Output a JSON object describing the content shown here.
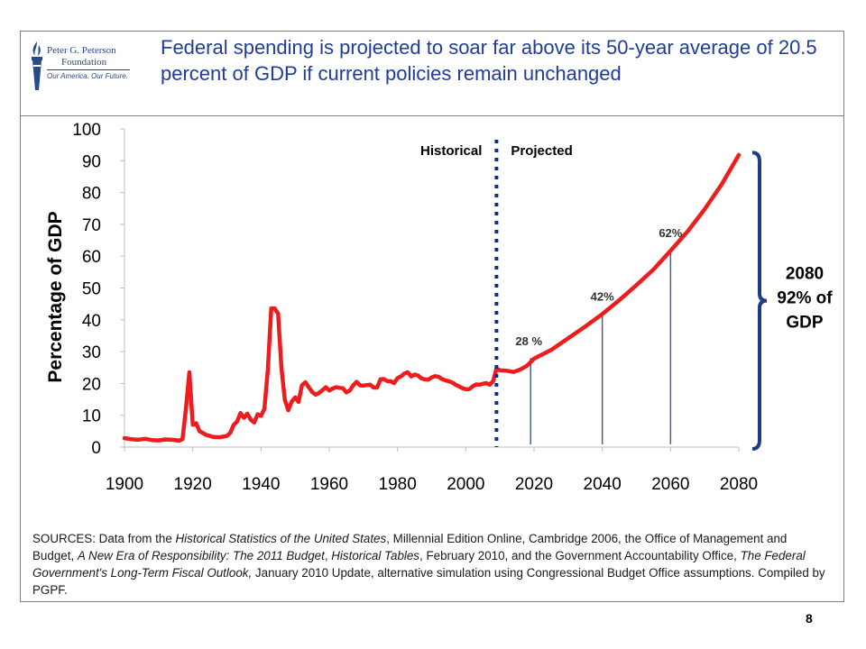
{
  "slide": {
    "title": "Federal spending is projected to soar far above its 50-year average of 20.5 percent of GDP if current policies remain unchanged",
    "page_number": "8",
    "sources": [
      {
        "text": "SOURCES: Data from the ",
        "italic": false
      },
      {
        "text": "Historical Statistics of the United States",
        "italic": true
      },
      {
        "text": ", Millennial Edition Online, Cambridge 2006, the Office of Management and Budget, ",
        "italic": false
      },
      {
        "text": "A New Era of Responsibility: The 2011 Budget",
        "italic": true
      },
      {
        "text": ", ",
        "italic": false
      },
      {
        "text": "Historical Tables",
        "italic": true
      },
      {
        "text": ", February 2010, and the Government Accountability Office, ",
        "italic": false
      },
      {
        "text": "The Federal Government's Long-Term Fiscal Outlook,",
        "italic": true
      },
      {
        "text": " January 2010 Update, alternative simulation using Congressional Budget Office assumptions. Compiled by PGPF.",
        "italic": false
      }
    ]
  },
  "logo": {
    "line1": "Peter G. Peterson",
    "line2": "Foundation",
    "tagline": "Our America. Our Future."
  },
  "colors": {
    "title": "#1f3d99",
    "line": "#ee1c1c",
    "bracket": "#1f3c88",
    "marker": "#4a5f8a",
    "divider": "#0f2f80",
    "text": "#1a1a1a"
  },
  "chart_data": {
    "type": "line",
    "ylabel": "Percentage of GDP",
    "xlim": [
      1900,
      2080
    ],
    "ylim": [
      0,
      100
    ],
    "x_ticks": [
      1900,
      1920,
      1940,
      1960,
      1980,
      2000,
      2020,
      2040,
      2060,
      2080
    ],
    "y_ticks": [
      0,
      10,
      20,
      30,
      40,
      50,
      60,
      70,
      80,
      90,
      100
    ],
    "divider_year": 2009,
    "region_labels": {
      "left": "Historical",
      "right": "Projected"
    },
    "series": [
      {
        "points": [
          [
            1900,
            2.8
          ],
          [
            1902,
            2.5
          ],
          [
            1904,
            2.3
          ],
          [
            1906,
            2.6
          ],
          [
            1908,
            2.2
          ],
          [
            1910,
            2.1
          ],
          [
            1912,
            2.4
          ],
          [
            1914,
            2.3
          ],
          [
            1916,
            2.0
          ],
          [
            1917,
            2.5
          ],
          [
            1918,
            12
          ],
          [
            1919,
            23.5
          ],
          [
            1920,
            7
          ],
          [
            1921,
            7.5
          ],
          [
            1922,
            5
          ],
          [
            1924,
            3.8
          ],
          [
            1926,
            3.2
          ],
          [
            1928,
            3.1
          ],
          [
            1930,
            3.5
          ],
          [
            1931,
            4.5
          ],
          [
            1932,
            7
          ],
          [
            1933,
            8
          ],
          [
            1934,
            10.7
          ],
          [
            1935,
            9.2
          ],
          [
            1936,
            10.5
          ],
          [
            1937,
            8.6
          ],
          [
            1938,
            7.7
          ],
          [
            1939,
            10.3
          ],
          [
            1940,
            9.8
          ],
          [
            1941,
            12
          ],
          [
            1942,
            24.3
          ],
          [
            1943,
            43.6
          ],
          [
            1944,
            43.6
          ],
          [
            1945,
            41.9
          ],
          [
            1946,
            24.8
          ],
          [
            1947,
            14.8
          ],
          [
            1948,
            11.6
          ],
          [
            1949,
            14.3
          ],
          [
            1950,
            15.6
          ],
          [
            1951,
            14.2
          ],
          [
            1952,
            19.4
          ],
          [
            1953,
            20.4
          ],
          [
            1954,
            18.8
          ],
          [
            1955,
            17.3
          ],
          [
            1956,
            16.5
          ],
          [
            1957,
            17
          ],
          [
            1958,
            17.9
          ],
          [
            1959,
            18.8
          ],
          [
            1960,
            17.8
          ],
          [
            1961,
            18.4
          ],
          [
            1962,
            18.8
          ],
          [
            1963,
            18.6
          ],
          [
            1964,
            18.5
          ],
          [
            1965,
            17.2
          ],
          [
            1966,
            17.8
          ],
          [
            1967,
            19.4
          ],
          [
            1968,
            20.5
          ],
          [
            1969,
            19.4
          ],
          [
            1970,
            19.3
          ],
          [
            1971,
            19.5
          ],
          [
            1972,
            19.6
          ],
          [
            1973,
            18.7
          ],
          [
            1974,
            18.7
          ],
          [
            1975,
            21.3
          ],
          [
            1976,
            21.4
          ],
          [
            1977,
            20.7
          ],
          [
            1978,
            20.7
          ],
          [
            1979,
            20.1
          ],
          [
            1980,
            21.7
          ],
          [
            1981,
            22.2
          ],
          [
            1982,
            23.1
          ],
          [
            1983,
            23.5
          ],
          [
            1984,
            22.2
          ],
          [
            1985,
            22.8
          ],
          [
            1986,
            22.5
          ],
          [
            1987,
            21.6
          ],
          [
            1988,
            21.3
          ],
          [
            1989,
            21.2
          ],
          [
            1990,
            21.9
          ],
          [
            1991,
            22.3
          ],
          [
            1992,
            22.1
          ],
          [
            1993,
            21.4
          ],
          [
            1994,
            21
          ],
          [
            1995,
            20.7
          ],
          [
            1996,
            20.3
          ],
          [
            1997,
            19.6
          ],
          [
            1998,
            19.1
          ],
          [
            1999,
            18.5
          ],
          [
            2000,
            18.2
          ],
          [
            2001,
            18.2
          ],
          [
            2002,
            19.1
          ],
          [
            2003,
            19.7
          ],
          [
            2004,
            19.6
          ],
          [
            2005,
            19.9
          ],
          [
            2006,
            20.1
          ],
          [
            2007,
            19.6
          ],
          [
            2008,
            20.7
          ],
          [
            2009,
            24.7
          ],
          [
            2010,
            24.1
          ],
          [
            2012,
            24.0
          ],
          [
            2014,
            23.6
          ],
          [
            2016,
            24.4
          ],
          [
            2018,
            25.6
          ],
          [
            2020,
            27.8
          ],
          [
            2025,
            30.5
          ],
          [
            2030,
            34.2
          ],
          [
            2035,
            37.9
          ],
          [
            2040,
            41.8
          ],
          [
            2045,
            46.2
          ],
          [
            2050,
            50.9
          ],
          [
            2055,
            55.8
          ],
          [
            2060,
            61.7
          ],
          [
            2065,
            67.8
          ],
          [
            2070,
            74.8
          ],
          [
            2075,
            82.6
          ],
          [
            2080,
            91.8
          ]
        ]
      }
    ],
    "markers": [
      {
        "year": 2019,
        "value": 28,
        "label": "28 %"
      },
      {
        "year": 2040,
        "value": 42,
        "label": "42%"
      },
      {
        "year": 2060,
        "value": 62,
        "label": "62%"
      }
    ],
    "bracket": {
      "from": 0,
      "to": 92,
      "label_lines": [
        "2080",
        "92% of",
        "GDP"
      ]
    }
  }
}
